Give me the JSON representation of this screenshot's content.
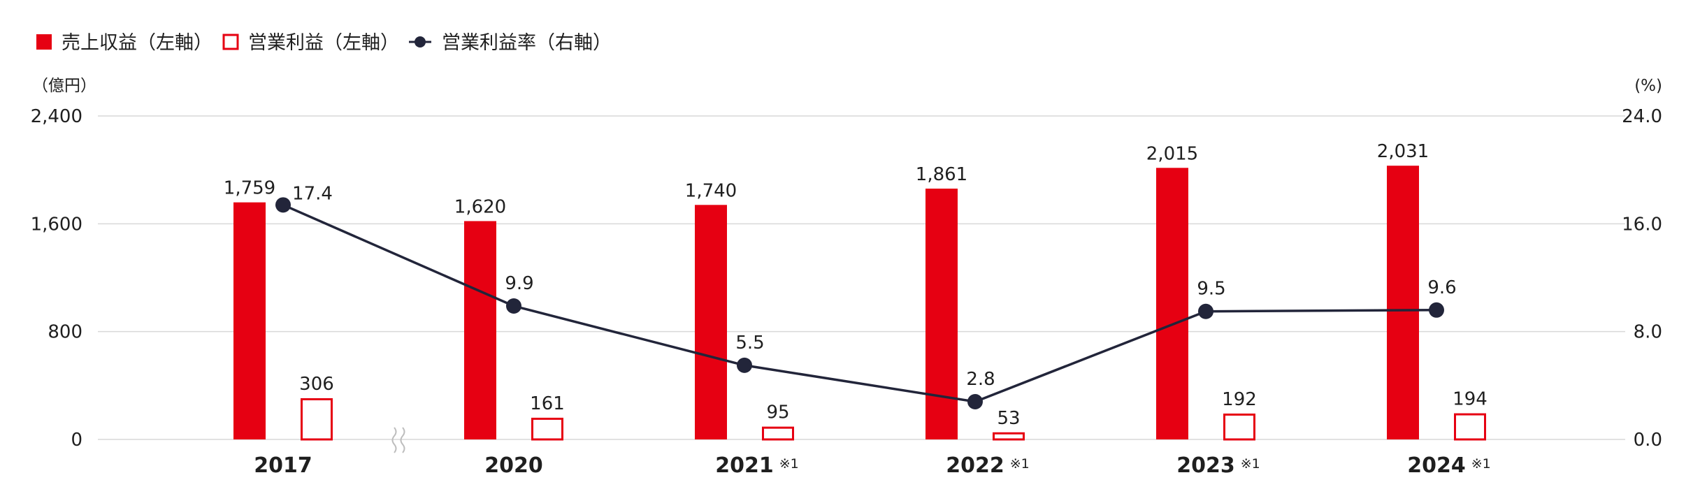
{
  "chart_data": {
    "type": "bar",
    "categories": [
      "2017",
      "2020",
      "2021",
      "2022",
      "2023",
      "2024"
    ],
    "category_notes": [
      "",
      "",
      "※1",
      "※1",
      "※1",
      "※1"
    ],
    "series": [
      {
        "name": "売上収益（左軸）",
        "kind": "bar",
        "axis": "left",
        "style": "filled",
        "values": [
          1759,
          1620,
          1740,
          1861,
          2015,
          2031
        ],
        "labels": [
          "1,759",
          "1,620",
          "1,740",
          "1,861",
          "2,015",
          "2,031"
        ]
      },
      {
        "name": "営業利益（左軸）",
        "kind": "bar",
        "axis": "left",
        "style": "outline",
        "values": [
          306,
          161,
          95,
          53,
          192,
          194
        ],
        "labels": [
          "306",
          "161",
          "95",
          "53",
          "192",
          "194"
        ]
      },
      {
        "name": "営業利益率（右軸）",
        "kind": "line",
        "axis": "right",
        "values": [
          17.4,
          9.9,
          5.5,
          2.8,
          9.5,
          9.6
        ],
        "labels": [
          "17.4",
          "9.9",
          "5.5",
          "2.8",
          "9.5",
          "9.6"
        ]
      }
    ],
    "left_axis": {
      "unit": "（億円）",
      "ylim": [
        0,
        2400
      ],
      "ticks": [
        "0",
        "800",
        "1,600",
        "2,400"
      ]
    },
    "right_axis": {
      "unit": "(%)",
      "ylim": [
        0,
        24
      ],
      "ticks": [
        "0.0",
        "8.0",
        "16.0",
        "24.0"
      ]
    },
    "axis_break_after_category": "2017",
    "grid": true,
    "legend_position": "top-left"
  },
  "colors": {
    "bar": "#e60012",
    "line": "#22253a",
    "grid": "#d9d9d9",
    "text": "#1f1f1f"
  }
}
